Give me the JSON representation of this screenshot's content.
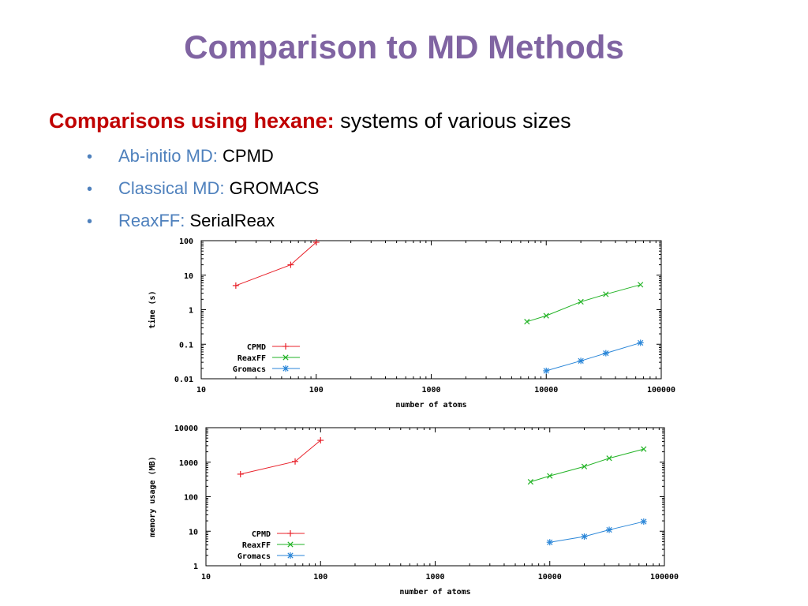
{
  "slide": {
    "title": "Comparison to MD Methods",
    "lead_label": "Comparisons using hexane:",
    "lead_text": "systems of various sizes",
    "bullets": [
      {
        "label": "Ab-initio MD:",
        "value": "CPMD"
      },
      {
        "label": "Classical MD:",
        "value": "GROMACS"
      },
      {
        "label": "ReaxFF:",
        "value": "SerialReax"
      }
    ]
  },
  "colors": {
    "title": "#8064a2",
    "emphasis": "#c00000",
    "bullet_label": "#4f81bd",
    "CPMD": "#e8212a",
    "ReaxFF": "#22b325",
    "Gromacs": "#2a86d8"
  },
  "chart_data": [
    {
      "type": "line",
      "xlabel": "number of atoms",
      "ylabel": "time (s)",
      "xscale": "log",
      "yscale": "log",
      "xlim": [
        10,
        100000
      ],
      "ylim": [
        0.01,
        100
      ],
      "xticks": [
        "10",
        "100",
        "1000",
        "10000",
        "100000"
      ],
      "yticks": [
        "0.01",
        "0.1",
        "1",
        "10",
        "100"
      ],
      "legend": "bottom-left",
      "series": [
        {
          "name": "CPMD",
          "marker": "plus",
          "x": [
            20,
            60,
            100
          ],
          "y": [
            5,
            20,
            90
          ]
        },
        {
          "name": "ReaxFF",
          "marker": "cross",
          "x": [
            6800,
            10000,
            20000,
            33000,
            66000
          ],
          "y": [
            0.45,
            0.67,
            1.7,
            2.8,
            5.3
          ]
        },
        {
          "name": "Gromacs",
          "marker": "star",
          "x": [
            10000,
            20000,
            33000,
            66000
          ],
          "y": [
            0.017,
            0.033,
            0.055,
            0.11
          ]
        }
      ]
    },
    {
      "type": "line",
      "xlabel": "number of atoms",
      "ylabel": "memory usage (MB)",
      "xscale": "log",
      "yscale": "log",
      "xlim": [
        10,
        100000
      ],
      "ylim": [
        1,
        10000
      ],
      "xticks": [
        "10",
        "100",
        "1000",
        "10000",
        "100000"
      ],
      "yticks": [
        "1",
        "10",
        "100",
        "1000",
        "10000"
      ],
      "legend": "bottom-left",
      "series": [
        {
          "name": "CPMD",
          "marker": "plus",
          "x": [
            20,
            60,
            100
          ],
          "y": [
            450,
            1050,
            4300
          ]
        },
        {
          "name": "ReaxFF",
          "marker": "cross",
          "x": [
            6800,
            10000,
            20000,
            33000,
            66000
          ],
          "y": [
            270,
            400,
            750,
            1300,
            2400
          ]
        },
        {
          "name": "Gromacs",
          "marker": "star",
          "x": [
            10000,
            20000,
            33000,
            66000
          ],
          "y": [
            4.8,
            7,
            11,
            19
          ]
        }
      ]
    }
  ]
}
